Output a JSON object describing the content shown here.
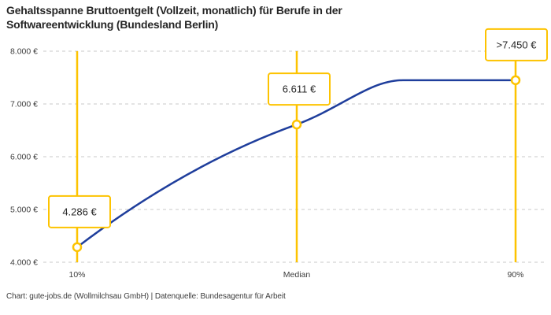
{
  "title": {
    "line1": "Gehaltsspanne Bruttoentgelt (Vollzeit, monatlich) für Berufe in der",
    "line2": "Softwareentwicklung (Bundesland Berlin)"
  },
  "footer": "Chart: gute-jobs.de (Wollmilchsau GmbH) | Datenquelle: Bundesagentur für Arbeit",
  "colors": {
    "accent_yellow": "#FDC300",
    "line_blue": "#1F3E9C",
    "grid_gray": "#C9C9C9",
    "text_dark": "#262626",
    "text_axis": "#3D3D3D",
    "marker_fill": "#FFFFFF",
    "label_box_fill": "#FFFFFF"
  },
  "chart_data": {
    "type": "line",
    "title": "Gehaltsspanne Bruttoentgelt (Vollzeit, monatlich) für Berufe in der Softwareentwicklung (Bundesland Berlin)",
    "categories": [
      "10%",
      "Median",
      "90%"
    ],
    "values": [
      4286,
      6611,
      7450
    ],
    "point_labels": [
      "4.286 €",
      "6.611 €",
      ">7.450 €"
    ],
    "ylim": [
      4000,
      8000
    ],
    "y_ticks": [
      8000,
      7000,
      6000,
      5000,
      4000
    ],
    "y_tick_labels": [
      "8.000 €",
      "7.000 €",
      "6.000 €",
      "5.000 €",
      "4.000 €"
    ],
    "xlabel": "",
    "ylabel": "",
    "grid": "horizontal-dashed",
    "legend": "none",
    "source": "Bundesagentur für Arbeit",
    "credit": "gute-jobs.de (Wollmilchsau GmbH)"
  }
}
